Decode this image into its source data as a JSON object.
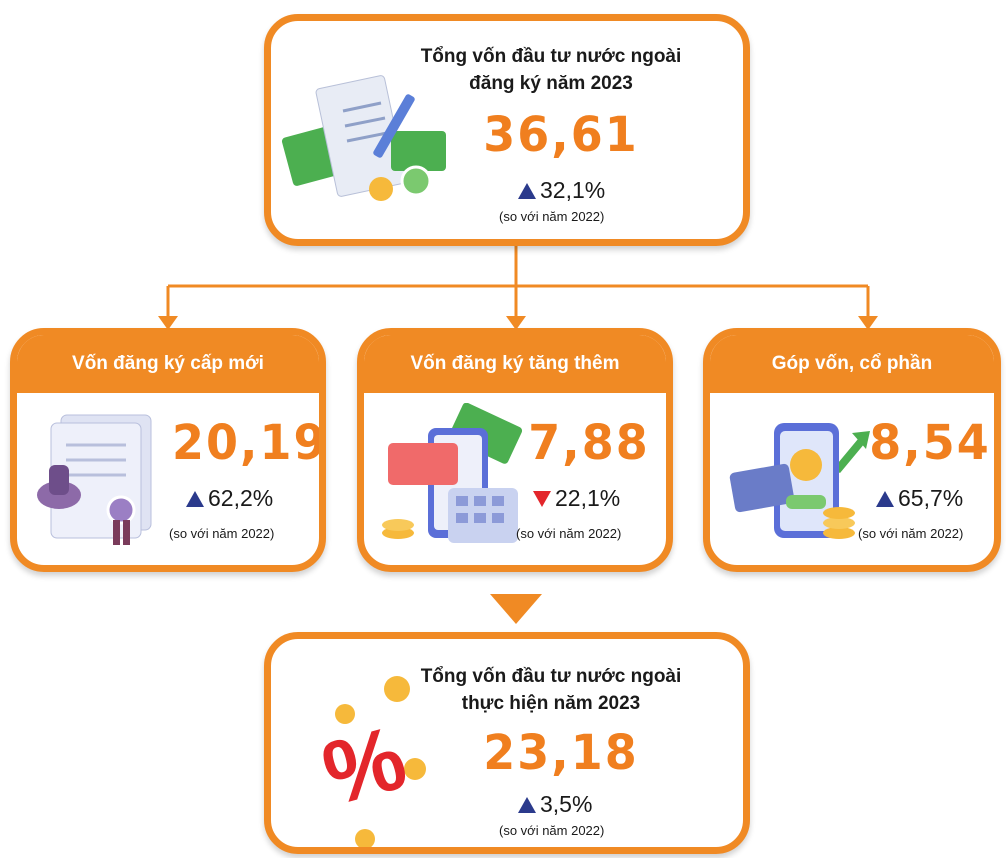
{
  "top": {
    "title": [
      "Tổng vốn đầu tư nước ngoài",
      "đăng ký năm 2023"
    ],
    "value": "36,61",
    "change": "32,1%",
    "note": "(so với năm 2022)"
  },
  "boxes": [
    {
      "header": "Vốn đăng ký cấp mới",
      "value": "20,19",
      "change": "62,2%",
      "note": "(so với năm 2022)"
    },
    {
      "header": "Vốn đăng ký tăng thêm",
      "value": "7,88",
      "change": "22,1%",
      "note": "(so với năm 2022)"
    },
    {
      "header": "Góp vốn, cổ phần",
      "value": "8,54",
      "change": "65,7%",
      "note": "(so với năm 2022)"
    }
  ],
  "bottom": {
    "title": [
      "Tổng vốn đầu tư nước ngoài",
      "thực hiện năm 2023"
    ],
    "value": "23,18",
    "change": "3,5%",
    "note": "(so với năm 2022)"
  }
}
